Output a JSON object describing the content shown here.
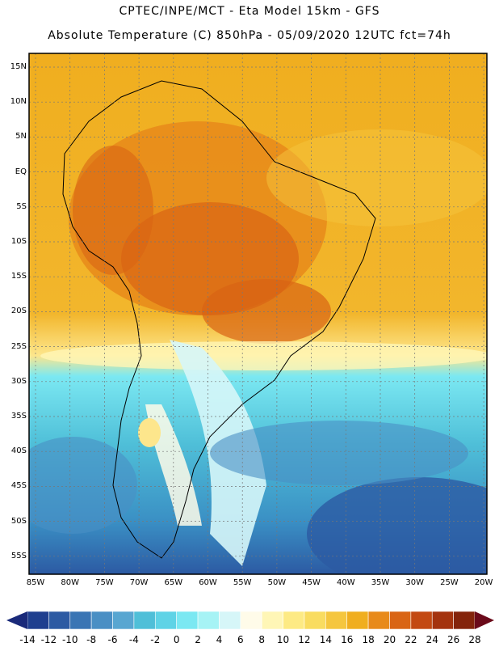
{
  "title_line1": "CPTEC/INPE/MCT -  Eta Model 15km - GFS",
  "title_line2": "Absolute Temperature (C) 850hPa - 05/09/2020 12UTC fct=74h",
  "lat_labels": [
    "15N",
    "10N",
    "5N",
    "EQ",
    "5S",
    "10S",
    "15S",
    "20S",
    "25S",
    "30S",
    "35S",
    "40S",
    "45S",
    "50S",
    "55S"
  ],
  "lon_labels": [
    "85W",
    "80W",
    "75W",
    "70W",
    "65W",
    "60W",
    "55W",
    "50W",
    "45W",
    "40W",
    "35W",
    "30W",
    "25W",
    "20W"
  ],
  "colorbar": {
    "labels": [
      "-14",
      "-12",
      "-10",
      "-8",
      "-6",
      "-4",
      "-2",
      "0",
      "2",
      "4",
      "6",
      "8",
      "10",
      "12",
      "14",
      "16",
      "18",
      "20",
      "22",
      "24",
      "26",
      "28"
    ],
    "colors": [
      "#1f3f8f",
      "#2c5aa3",
      "#3a75b4",
      "#4a8fc4",
      "#58a6d1",
      "#4fbfd8",
      "#5fd3e6",
      "#7be8f2",
      "#a6f3f5",
      "#d6f6f8",
      "#fffbe9",
      "#fff6b6",
      "#fdea84",
      "#f9dc60",
      "#f5c63e",
      "#f0ae1f",
      "#e88a1a",
      "#d96414",
      "#c34912",
      "#a4330e",
      "#84240b"
    ],
    "under_color": "#1a2a7a",
    "over_color": "#6b0a1a"
  }
}
